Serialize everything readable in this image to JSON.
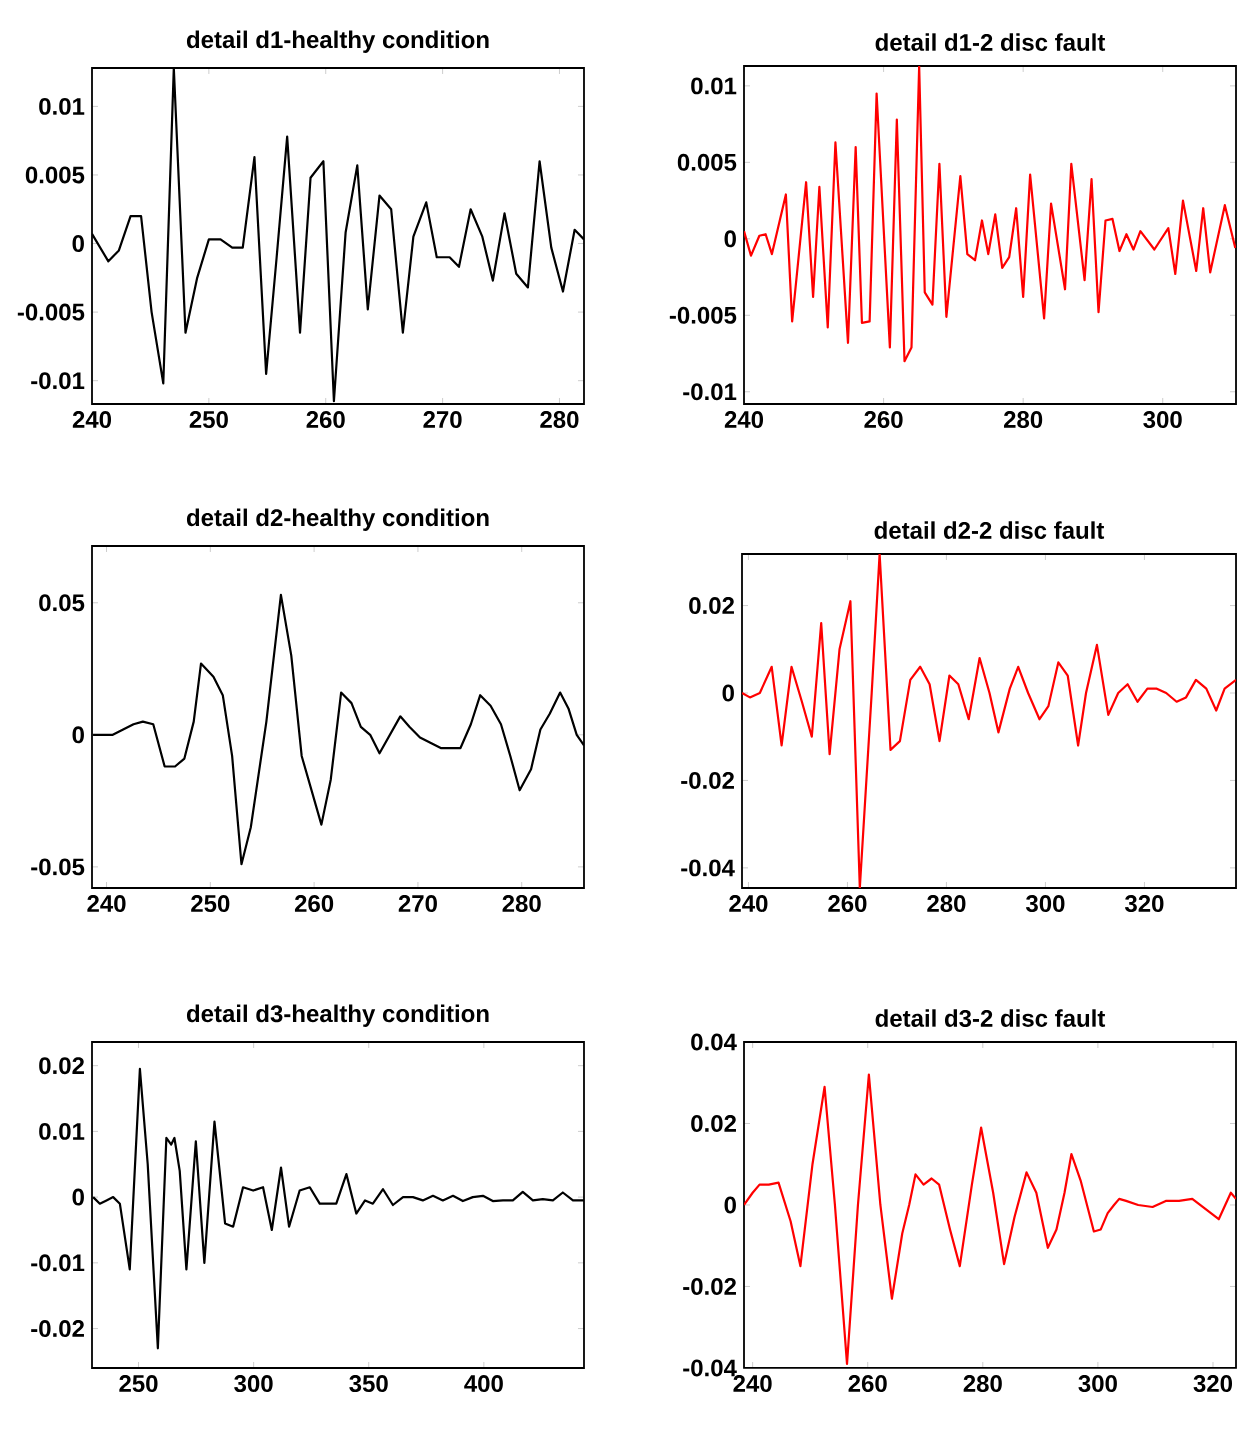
{
  "chart_data": [
    {
      "type": "line",
      "title": "detail d1-healthy condition",
      "color": "#000000",
      "xlim": [
        240,
        282.1
      ],
      "ylim": [
        -0.0117,
        0.0128
      ],
      "xticks": [
        240,
        250,
        260,
        270,
        280
      ],
      "yticks": [
        -0.01,
        -0.005,
        0,
        0.005,
        0.01
      ],
      "x": [
        240,
        241.4,
        242.3,
        243.3,
        244.2,
        245.1,
        246.1,
        247,
        248,
        249,
        250,
        251,
        252,
        252.9,
        253.9,
        254.9,
        255.8,
        256.7,
        257.8,
        258.7,
        259.8,
        260.7,
        261.7,
        262.7,
        263.6,
        264.6,
        265.6,
        266.6,
        267.5,
        268.6,
        269.5,
        270.6,
        271.4,
        272.4,
        273.4,
        274.3,
        275.3,
        276.3,
        277.3,
        278.3,
        279.3,
        280.3,
        281.3,
        282.1
      ],
      "values": [
        0.0007,
        -0.0013,
        -0.0005,
        0.002,
        0.002,
        -0.005,
        -0.0102,
        0.0128,
        -0.0065,
        -0.0025,
        0.0003,
        0.0003,
        -0.0003,
        -0.0003,
        0.0063,
        -0.0095,
        -0.001,
        0.0078,
        -0.0065,
        0.0048,
        0.006,
        -0.0115,
        0.0008,
        0.0057,
        -0.0048,
        0.0035,
        0.0025,
        -0.0065,
        0.0005,
        0.003,
        -0.001,
        -0.001,
        -0.0017,
        0.0025,
        0.0005,
        -0.0027,
        0.0022,
        -0.0022,
        -0.0032,
        0.006,
        -0.0003,
        -0.0035,
        0.001,
        0.0003
      ]
    },
    {
      "type": "line",
      "title": "detail d1-2 disc fault",
      "color": "#ff0000",
      "xlim": [
        240,
        310.5
      ],
      "ylim": [
        -0.0108,
        0.0113
      ],
      "xticks": [
        240,
        260,
        280,
        300
      ],
      "yticks": [
        -0.01,
        -0.005,
        0,
        0.005,
        0.01
      ],
      "x": [
        240,
        241,
        242.2,
        243.1,
        244,
        246,
        246.9,
        248.9,
        249.9,
        250.8,
        252,
        253.1,
        254.9,
        256,
        256.9,
        258,
        259,
        260.9,
        261.9,
        263,
        264,
        265.1,
        265.9,
        267,
        268,
        269,
        271,
        272,
        273.1,
        274.1,
        275,
        276,
        277,
        278,
        279,
        280,
        281,
        283,
        284,
        286,
        286.9,
        288.8,
        289.8,
        290.8,
        291.8,
        292.8,
        293.8,
        294.8,
        295.8,
        296.8,
        298.8,
        300.8,
        301.8,
        302.9,
        304.8,
        305.8,
        306.8,
        308.9,
        310.4
      ],
      "values": [
        0.0005,
        -0.0011,
        0.0002,
        0.0003,
        -0.001,
        0.0029,
        -0.0054,
        0.0037,
        -0.0038,
        0.0034,
        -0.0058,
        0.0063,
        -0.0068,
        0.006,
        -0.0055,
        -0.0054,
        0.0095,
        -0.0071,
        0.0078,
        -0.008,
        -0.0071,
        0.0113,
        -0.0035,
        -0.0043,
        0.0049,
        -0.0051,
        0.0041,
        -0.001,
        -0.0014,
        0.0012,
        -0.001,
        0.0016,
        -0.0019,
        -0.0012,
        0.002,
        -0.0038,
        0.0042,
        -0.0052,
        0.0023,
        -0.0033,
        0.0049,
        -0.0027,
        0.0039,
        -0.0048,
        0.0012,
        0.0013,
        -0.0008,
        0.0003,
        -0.0007,
        0.0005,
        -0.0007,
        0.0007,
        -0.0023,
        0.0025,
        -0.0021,
        0.002,
        -0.0022,
        0.0022,
        -0.0006
      ]
    },
    {
      "type": "line",
      "title": "detail d2-healthy condition",
      "color": "#000000",
      "xlim": [
        238.6,
        286
      ],
      "ylim": [
        -0.058,
        0.0715
      ],
      "xticks": [
        240,
        250,
        260,
        270,
        280
      ],
      "yticks": [
        -0.05,
        0,
        0.05
      ],
      "x": [
        238.7,
        239.7,
        240.6,
        241.6,
        242.6,
        243.5,
        244.5,
        245.6,
        246.6,
        247.5,
        248.4,
        249.1,
        250.3,
        251.2,
        252.1,
        253,
        253.9,
        255.4,
        256.8,
        257.8,
        258.8,
        260.7,
        261.6,
        262.6,
        263.6,
        264.5,
        265.4,
        266.3,
        268.3,
        269.2,
        270.2,
        271.2,
        272.2,
        274.1,
        275.1,
        276,
        277,
        278,
        278.9,
        279.8,
        280.9,
        281.8,
        282.7,
        283.7,
        284.5,
        285.3,
        286
      ],
      "values": [
        0,
        0,
        0,
        0.002,
        0.004,
        0.005,
        0.004,
        -0.012,
        -0.012,
        -0.009,
        0.005,
        0.027,
        0.022,
        0.015,
        -0.008,
        -0.049,
        -0.035,
        0.005,
        0.053,
        0.03,
        -0.008,
        -0.034,
        -0.017,
        0.016,
        0.012,
        0.003,
        0,
        -0.007,
        0.007,
        0.003,
        -0.001,
        -0.003,
        -0.005,
        -0.005,
        0.004,
        0.015,
        0.011,
        0.004,
        -0.008,
        -0.021,
        -0.013,
        0.002,
        0.008,
        0.016,
        0.01,
        0,
        -0.004
      ]
    },
    {
      "type": "line",
      "title": "detail d2-2 disc fault",
      "color": "#ff0000",
      "xlim": [
        238.7,
        338.5
      ],
      "ylim": [
        -0.0446,
        0.0318
      ],
      "xticks": [
        240,
        260,
        280,
        300,
        320
      ],
      "yticks": [
        -0.04,
        -0.02,
        0,
        0.02
      ],
      "x": [
        238.7,
        240.3,
        242.3,
        244.7,
        246.7,
        248.7,
        250.8,
        252.8,
        254.7,
        256.4,
        258.4,
        260.6,
        262.5,
        264.9,
        266.5,
        268.7,
        270.6,
        272.7,
        274.7,
        276.6,
        278.6,
        280.6,
        282.4,
        284.5,
        286.7,
        288.7,
        290.5,
        292.8,
        294.5,
        296.5,
        298.8,
        300.6,
        302.6,
        304.5,
        306.6,
        308.2,
        310.4,
        312.7,
        314.7,
        316.6,
        318.6,
        320.6,
        322.5,
        324.4,
        326.5,
        328.4,
        330.4,
        332.5,
        334.5,
        336.2,
        338.5
      ],
      "values": [
        0,
        -0.001,
        0,
        0.006,
        -0.012,
        0.006,
        -0.002,
        -0.01,
        0.016,
        -0.014,
        0.01,
        0.021,
        -0.0446,
        0,
        0.0318,
        -0.013,
        -0.011,
        0.003,
        0.006,
        0.002,
        -0.011,
        0.004,
        0.002,
        -0.006,
        0.008,
        0,
        -0.009,
        0.001,
        0.006,
        0,
        -0.006,
        -0.003,
        0.007,
        0.004,
        -0.012,
        0,
        0.011,
        -0.005,
        0,
        0.002,
        -0.002,
        0.001,
        0.001,
        0,
        -0.002,
        -0.001,
        0.003,
        0.001,
        -0.004,
        0.001,
        0.003
      ]
    },
    {
      "type": "line",
      "title": "detail d3-healthy condition",
      "color": "#000000",
      "xlim": [
        229.8,
        443.5
      ],
      "ylim": [
        -0.026,
        0.0236
      ],
      "xticks": [
        250,
        300,
        350,
        400
      ],
      "yticks": [
        -0.02,
        -0.01,
        0,
        0.01,
        0.02
      ],
      "x": [
        230.3,
        233.2,
        236.1,
        239,
        241.9,
        246.2,
        250.6,
        254,
        258.4,
        262.1,
        264.2,
        265.6,
        267.9,
        270.8,
        274.9,
        278.6,
        283,
        287.6,
        291.1,
        295.4,
        299.8,
        304.1,
        307.9,
        311.9,
        315.4,
        320,
        324.4,
        328.7,
        335.9,
        340.3,
        344.6,
        348.4,
        351.8,
        356.2,
        360.5,
        364.9,
        369.2,
        373.5,
        377.9,
        382.2,
        386.6,
        390.9,
        395.2,
        399.6,
        403.9,
        408.3,
        412.6,
        416.9,
        421.3,
        425.6,
        430,
        434.3,
        438.7,
        443.5
      ],
      "values": [
        0,
        -0.001,
        -0.0005,
        0,
        -0.001,
        -0.011,
        0.0195,
        0.005,
        -0.023,
        0.009,
        0.008,
        0.009,
        0.004,
        -0.011,
        0.0085,
        -0.01,
        0.0115,
        -0.004,
        -0.0045,
        0.0015,
        0.001,
        0.0015,
        -0.005,
        0.0045,
        -0.0045,
        0.001,
        0.0015,
        -0.001,
        -0.001,
        0.0035,
        -0.0025,
        -0.0005,
        -0.001,
        0.0012,
        -0.0012,
        0,
        0,
        -0.0005,
        0.0002,
        -0.0005,
        0.0002,
        -0.0006,
        0,
        0.0002,
        -0.0006,
        -0.0005,
        -0.0005,
        0.0008,
        -0.0005,
        -0.0003,
        -0.0005,
        0.0007,
        -0.0005,
        -0.0005
      ]
    },
    {
      "type": "line",
      "title": "detail d3-2 disc fault",
      "color": "#ff0000",
      "xlim": [
        238.5,
        324
      ],
      "ylim": [
        -0.04,
        0.04
      ],
      "xticks": [
        240,
        260,
        280,
        300,
        320
      ],
      "yticks": [
        -0.04,
        -0.02,
        0,
        0.02,
        0.04
      ],
      "x": [
        238.5,
        240,
        241.2,
        242.8,
        244.5,
        246.6,
        248.3,
        250.4,
        252.5,
        254.3,
        256.4,
        258.3,
        260.2,
        262.2,
        264.2,
        266,
        267.2,
        268.3,
        269.7,
        271.1,
        272.4,
        274.3,
        276,
        278.1,
        279.7,
        281.8,
        283.7,
        285.5,
        287.6,
        289.3,
        291.3,
        292.8,
        294.2,
        295.4,
        297,
        299.3,
        300.5,
        301.7,
        302.8,
        303.7,
        304.9,
        307,
        309.5,
        311.8,
        314.1,
        316.4,
        318.7,
        321,
        323.1,
        324
      ],
      "values": [
        0,
        0.003,
        0.005,
        0.005,
        0.0055,
        -0.004,
        -0.015,
        0.01,
        0.029,
        0,
        -0.039,
        0,
        0.032,
        0,
        -0.023,
        -0.007,
        0,
        0.0075,
        0.005,
        0.0065,
        0.005,
        -0.006,
        -0.015,
        0.005,
        0.019,
        0.003,
        -0.0145,
        -0.003,
        0.008,
        0.003,
        -0.0105,
        -0.006,
        0.003,
        0.0125,
        0.006,
        -0.0065,
        -0.006,
        -0.002,
        0,
        0.0015,
        0.001,
        0,
        -0.0005,
        0.001,
        0.001,
        0.0015,
        -0.001,
        -0.0035,
        0.003,
        0.0015
      ]
    }
  ]
}
